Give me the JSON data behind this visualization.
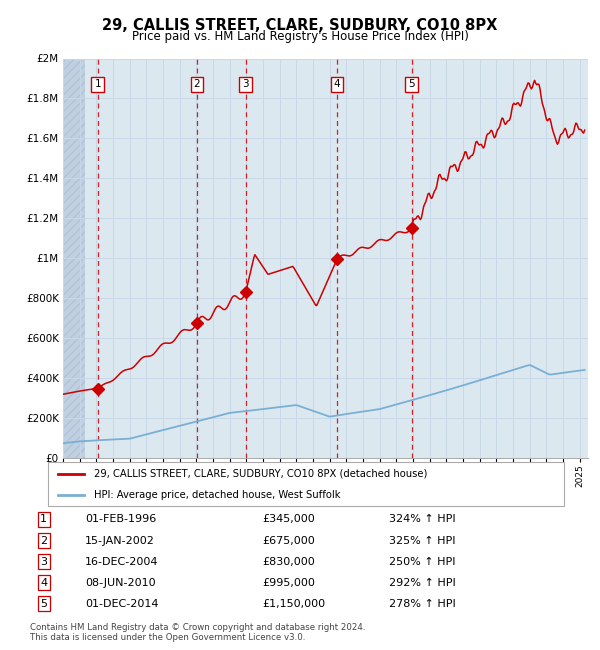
{
  "title": "29, CALLIS STREET, CLARE, SUDBURY, CO10 8PX",
  "subtitle": "Price paid vs. HM Land Registry's House Price Index (HPI)",
  "legend_line1": "29, CALLIS STREET, CLARE, SUDBURY, CO10 8PX (detached house)",
  "legend_line2": "HPI: Average price, detached house, West Suffolk",
  "footer_line1": "Contains HM Land Registry data © Crown copyright and database right 2024.",
  "footer_line2": "This data is licensed under the Open Government Licence v3.0.",
  "sales": [
    {
      "label": "1",
      "date": 1996.08,
      "price": 345000
    },
    {
      "label": "2",
      "date": 2002.04,
      "price": 675000
    },
    {
      "label": "3",
      "date": 2004.96,
      "price": 830000
    },
    {
      "label": "4",
      "date": 2010.44,
      "price": 995000
    },
    {
      "label": "5",
      "date": 2014.92,
      "price": 1150000
    }
  ],
  "table_rows": [
    {
      "num": "1",
      "date": "01-FEB-1996",
      "price": "£345,000",
      "hpi": "324% ↑ HPI"
    },
    {
      "num": "2",
      "date": "15-JAN-2002",
      "price": "£675,000",
      "hpi": "325% ↑ HPI"
    },
    {
      "num": "3",
      "date": "16-DEC-2004",
      "price": "£830,000",
      "hpi": "250% ↑ HPI"
    },
    {
      "num": "4",
      "date": "08-JUN-2010",
      "price": "£995,000",
      "hpi": "292% ↑ HPI"
    },
    {
      "num": "5",
      "date": "01-DEC-2014",
      "price": "£1,150,000",
      "hpi": "278% ↑ HPI"
    }
  ],
  "red_line_color": "#cc0000",
  "blue_line_color": "#7aafd4",
  "vline_color": "#cc0000",
  "grid_color": "#c8d8e8",
  "plot_bg": "#dce8f0",
  "ylim": [
    0,
    2000000
  ],
  "xlim": [
    1994.0,
    2025.5
  ],
  "yticks": [
    0,
    200000,
    400000,
    600000,
    800000,
    1000000,
    1200000,
    1400000,
    1600000,
    1800000,
    2000000
  ]
}
